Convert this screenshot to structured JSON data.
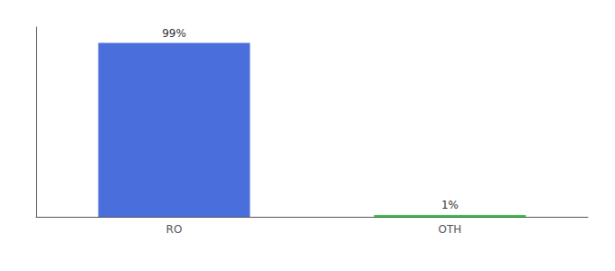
{
  "chart_data": {
    "type": "bar",
    "categories": [
      "RO",
      "OTH"
    ],
    "values": [
      99,
      1
    ],
    "value_labels": [
      "99%",
      "1%"
    ],
    "colors": [
      "#4a6edb",
      "#2ecc40"
    ],
    "data_labels": true,
    "ylim": [
      0,
      108
    ],
    "grid": false,
    "tick_labels": "x"
  }
}
